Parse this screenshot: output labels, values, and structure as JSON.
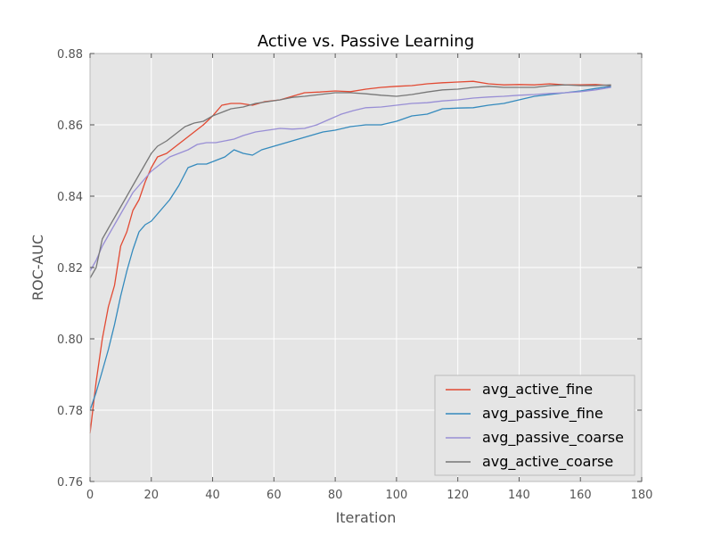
{
  "chart_data": {
    "type": "line",
    "title": "Active vs. Passive Learning",
    "xlabel": "Iteration",
    "ylabel": "ROC-AUC",
    "xlim": [
      0,
      180
    ],
    "ylim": [
      0.76,
      0.88
    ],
    "xticks": [
      "0",
      "20",
      "40",
      "60",
      "80",
      "100",
      "120",
      "140",
      "160",
      "180"
    ],
    "yticks": [
      "0.76",
      "0.78",
      "0.80",
      "0.82",
      "0.84",
      "0.86",
      "0.88"
    ],
    "grid": true,
    "background": "#e5e5e5",
    "legend_position": "lower-right",
    "series": [
      {
        "name": "avg_active_fine",
        "color": "#e24a33",
        "points": [
          [
            0,
            0.7735
          ],
          [
            2,
            0.788
          ],
          [
            4,
            0.8
          ],
          [
            6,
            0.809
          ],
          [
            8,
            0.815
          ],
          [
            10,
            0.826
          ],
          [
            12,
            0.83
          ],
          [
            14,
            0.836
          ],
          [
            16,
            0.839
          ],
          [
            18,
            0.844
          ],
          [
            20,
            0.848
          ],
          [
            22,
            0.851
          ],
          [
            25,
            0.852
          ],
          [
            28,
            0.854
          ],
          [
            31,
            0.856
          ],
          [
            34,
            0.858
          ],
          [
            37,
            0.86
          ],
          [
            40,
            0.8625
          ],
          [
            43,
            0.8655
          ],
          [
            46,
            0.866
          ],
          [
            49,
            0.866
          ],
          [
            53,
            0.8655
          ],
          [
            57,
            0.8665
          ],
          [
            62,
            0.867
          ],
          [
            66,
            0.868
          ],
          [
            70,
            0.869
          ],
          [
            75,
            0.8692
          ],
          [
            80,
            0.8695
          ],
          [
            85,
            0.8693
          ],
          [
            90,
            0.87
          ],
          [
            95,
            0.8705
          ],
          [
            100,
            0.8708
          ],
          [
            105,
            0.871
          ],
          [
            110,
            0.8715
          ],
          [
            115,
            0.8718
          ],
          [
            120,
            0.872
          ],
          [
            125,
            0.8722
          ],
          [
            130,
            0.8715
          ],
          [
            135,
            0.8712
          ],
          [
            140,
            0.8713
          ],
          [
            145,
            0.8712
          ],
          [
            150,
            0.8715
          ],
          [
            155,
            0.8712
          ],
          [
            160,
            0.8712
          ],
          [
            165,
            0.8713
          ],
          [
            170,
            0.871
          ]
        ]
      },
      {
        "name": "avg_passive_fine",
        "color": "#348abd",
        "points": [
          [
            0,
            0.78
          ],
          [
            2,
            0.785
          ],
          [
            4,
            0.791
          ],
          [
            6,
            0.797
          ],
          [
            8,
            0.804
          ],
          [
            10,
            0.812
          ],
          [
            12,
            0.819
          ],
          [
            14,
            0.825
          ],
          [
            16,
            0.83
          ],
          [
            18,
            0.832
          ],
          [
            20,
            0.833
          ],
          [
            23,
            0.836
          ],
          [
            26,
            0.839
          ],
          [
            29,
            0.843
          ],
          [
            32,
            0.848
          ],
          [
            35,
            0.849
          ],
          [
            38,
            0.849
          ],
          [
            41,
            0.85
          ],
          [
            44,
            0.851
          ],
          [
            47,
            0.853
          ],
          [
            50,
            0.852
          ],
          [
            53,
            0.8515
          ],
          [
            56,
            0.853
          ],
          [
            60,
            0.854
          ],
          [
            64,
            0.855
          ],
          [
            68,
            0.856
          ],
          [
            72,
            0.857
          ],
          [
            76,
            0.858
          ],
          [
            80,
            0.8585
          ],
          [
            85,
            0.8595
          ],
          [
            90,
            0.86
          ],
          [
            95,
            0.86
          ],
          [
            100,
            0.861
          ],
          [
            105,
            0.8625
          ],
          [
            110,
            0.863
          ],
          [
            115,
            0.8645
          ],
          [
            120,
            0.8647
          ],
          [
            125,
            0.8648
          ],
          [
            130,
            0.8655
          ],
          [
            135,
            0.866
          ],
          [
            140,
            0.867
          ],
          [
            145,
            0.868
          ],
          [
            150,
            0.8685
          ],
          [
            155,
            0.869
          ],
          [
            160,
            0.8695
          ],
          [
            165,
            0.8702
          ],
          [
            170,
            0.8708
          ]
        ]
      },
      {
        "name": "avg_passive_coarse",
        "color": "#988ed5",
        "points": [
          [
            0,
            0.819
          ],
          [
            2,
            0.822
          ],
          [
            4,
            0.826
          ],
          [
            6,
            0.829
          ],
          [
            8,
            0.832
          ],
          [
            10,
            0.835
          ],
          [
            12,
            0.838
          ],
          [
            14,
            0.841
          ],
          [
            16,
            0.843
          ],
          [
            18,
            0.845
          ],
          [
            20,
            0.847
          ],
          [
            23,
            0.849
          ],
          [
            26,
            0.851
          ],
          [
            29,
            0.852
          ],
          [
            32,
            0.853
          ],
          [
            35,
            0.8545
          ],
          [
            38,
            0.855
          ],
          [
            41,
            0.855
          ],
          [
            44,
            0.8555
          ],
          [
            47,
            0.856
          ],
          [
            50,
            0.857
          ],
          [
            54,
            0.858
          ],
          [
            58,
            0.8585
          ],
          [
            62,
            0.859
          ],
          [
            66,
            0.8588
          ],
          [
            70,
            0.859
          ],
          [
            74,
            0.86
          ],
          [
            78,
            0.8615
          ],
          [
            82,
            0.863
          ],
          [
            86,
            0.864
          ],
          [
            90,
            0.8648
          ],
          [
            95,
            0.865
          ],
          [
            100,
            0.8655
          ],
          [
            105,
            0.866
          ],
          [
            110,
            0.8662
          ],
          [
            115,
            0.8667
          ],
          [
            120,
            0.867
          ],
          [
            125,
            0.8675
          ],
          [
            130,
            0.8678
          ],
          [
            135,
            0.868
          ],
          [
            140,
            0.8683
          ],
          [
            145,
            0.8685
          ],
          [
            150,
            0.8688
          ],
          [
            155,
            0.869
          ],
          [
            160,
            0.8693
          ],
          [
            165,
            0.8698
          ],
          [
            170,
            0.8705
          ]
        ]
      },
      {
        "name": "avg_active_coarse",
        "color": "#777777",
        "points": [
          [
            0,
            0.817
          ],
          [
            2,
            0.82
          ],
          [
            4,
            0.828
          ],
          [
            6,
            0.831
          ],
          [
            8,
            0.834
          ],
          [
            10,
            0.837
          ],
          [
            12,
            0.84
          ],
          [
            14,
            0.843
          ],
          [
            16,
            0.846
          ],
          [
            18,
            0.849
          ],
          [
            20,
            0.852
          ],
          [
            22,
            0.854
          ],
          [
            25,
            0.8555
          ],
          [
            28,
            0.8575
          ],
          [
            31,
            0.8595
          ],
          [
            34,
            0.8605
          ],
          [
            37,
            0.861
          ],
          [
            40,
            0.8625
          ],
          [
            43,
            0.8635
          ],
          [
            46,
            0.8645
          ],
          [
            50,
            0.865
          ],
          [
            54,
            0.866
          ],
          [
            58,
            0.8665
          ],
          [
            62,
            0.867
          ],
          [
            66,
            0.8677
          ],
          [
            70,
            0.868
          ],
          [
            75,
            0.8685
          ],
          [
            80,
            0.869
          ],
          [
            85,
            0.869
          ],
          [
            90,
            0.8687
          ],
          [
            95,
            0.8683
          ],
          [
            100,
            0.868
          ],
          [
            105,
            0.8685
          ],
          [
            110,
            0.8692
          ],
          [
            115,
            0.8698
          ],
          [
            120,
            0.87
          ],
          [
            125,
            0.8705
          ],
          [
            130,
            0.8708
          ],
          [
            135,
            0.8705
          ],
          [
            140,
            0.8705
          ],
          [
            145,
            0.8705
          ],
          [
            150,
            0.871
          ],
          [
            155,
            0.8712
          ],
          [
            160,
            0.871
          ],
          [
            165,
            0.871
          ],
          [
            170,
            0.8712
          ]
        ]
      }
    ]
  }
}
